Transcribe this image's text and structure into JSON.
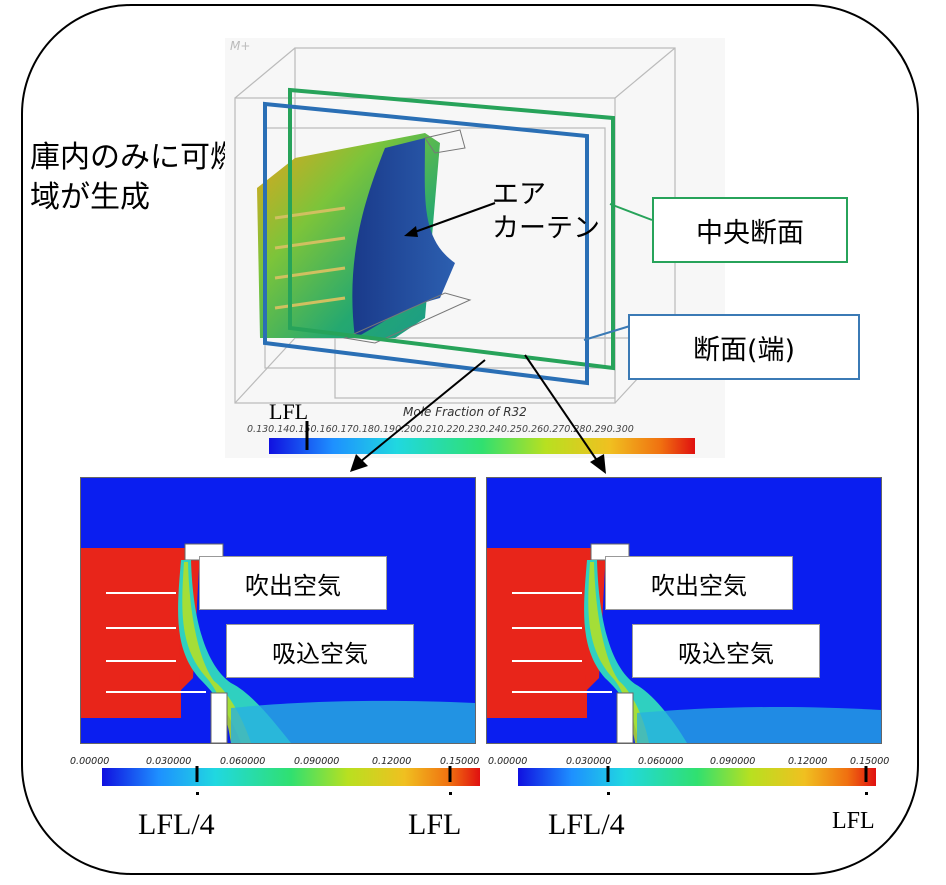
{
  "annotations": {
    "note": "庫内のみに可燃域が生成",
    "air_curtain": "エア\nカーテン",
    "center_section": "中央断面",
    "edge_section": "断面(端)"
  },
  "top_render": {
    "corner_text": "M+",
    "colorbar_title": "Mole Fraction of R32",
    "colorbar_ticks": "0.130.140.150.160.170.180.190.200.210.220.230.240.250.260.270.280.290.300",
    "lfl_label": "LFL"
  },
  "panels": [
    {
      "outlet_label": "吹出空気",
      "inlet_label": "吸込空気",
      "ticks": [
        "0.00000",
        "0.030000",
        "0.060000",
        "0.090000",
        "0.12000",
        "0.15000"
      ],
      "marker_left": "LFL/4",
      "marker_right": "LFL"
    },
    {
      "outlet_label": "吹出空気",
      "inlet_label": "吸込空気",
      "ticks": [
        "0.00000",
        "0.030000",
        "0.060000",
        "0.090000",
        "0.12000",
        "0.15000"
      ],
      "marker_left": "LFL/4",
      "marker_right": "LFL"
    }
  ],
  "colors": {
    "center_section": "#27a35a",
    "edge_section": "#3b7ab5",
    "field_background": "#0a1ef0",
    "showcase": "#e8251a"
  }
}
